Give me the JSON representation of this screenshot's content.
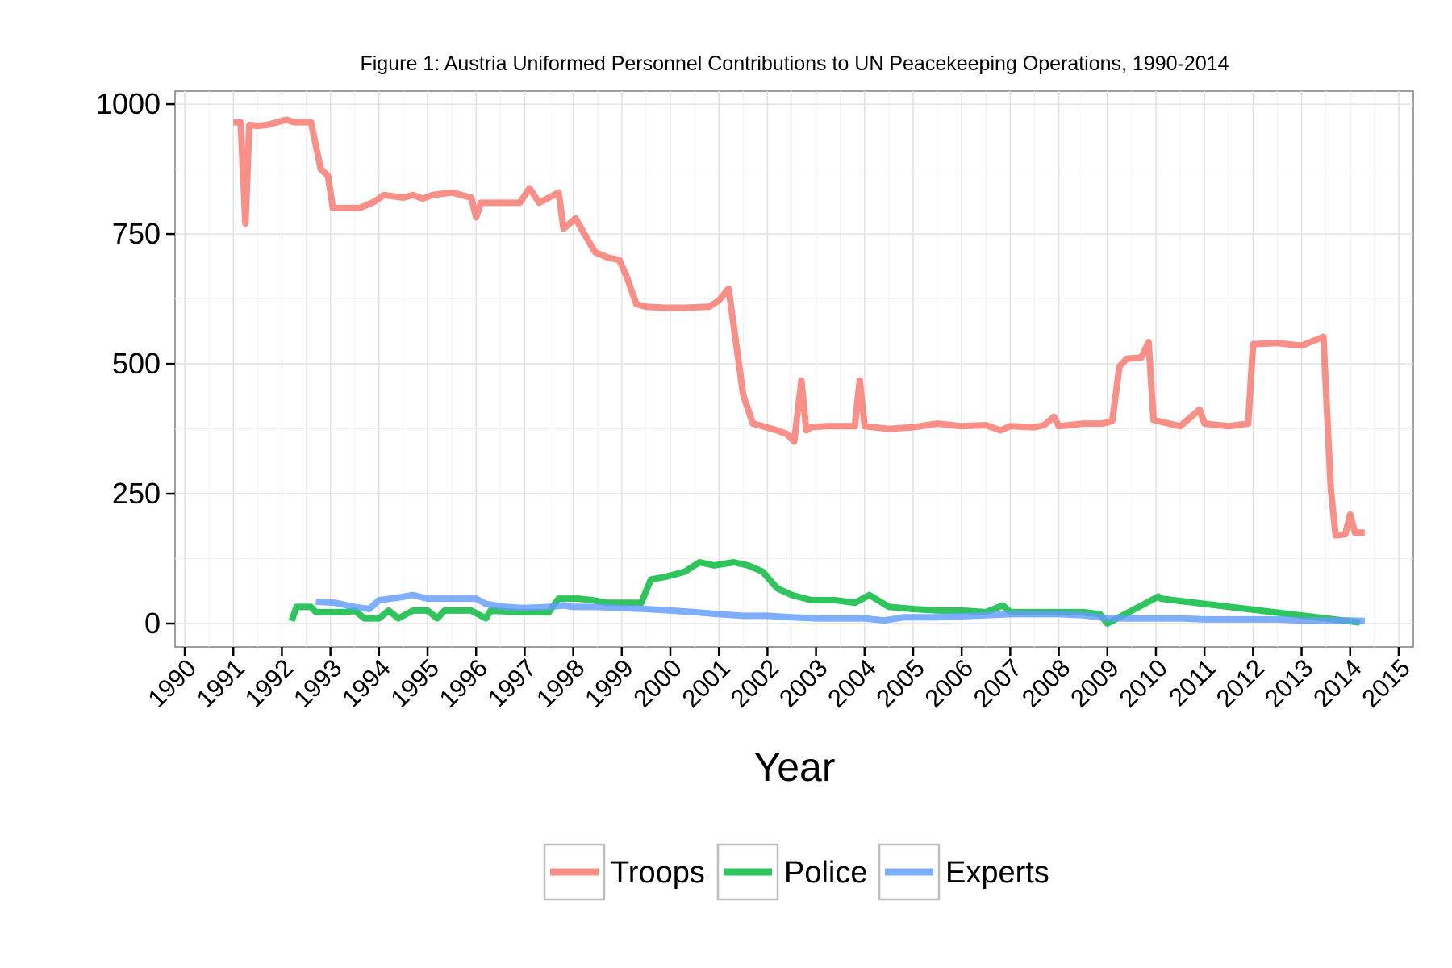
{
  "chart_data": {
    "type": "line",
    "title": "Figure 1: Austria Uniformed Personnel Contributions to UN Peacekeeping Operations, 1990-2014",
    "xlabel": "Year",
    "ylabel": "",
    "xlim": [
      1989.8,
      2015.3
    ],
    "ylim": [
      -45,
      1025
    ],
    "x_ticks": [
      "1990",
      "1991",
      "1992",
      "1993",
      "1994",
      "1995",
      "1996",
      "1997",
      "1998",
      "1999",
      "2000",
      "2001",
      "2002",
      "2003",
      "2004",
      "2005",
      "2006",
      "2007",
      "2008",
      "2009",
      "2010",
      "2011",
      "2012",
      "2013",
      "2014",
      "2015"
    ],
    "y_ticks": [
      "0",
      "250",
      "500",
      "750",
      "1000"
    ],
    "grid": true,
    "legend_position": "bottom",
    "colors": {
      "Troops": "#F8766D",
      "Police": "#00BA38",
      "Experts": "#619CFF"
    },
    "series": [
      {
        "name": "Troops",
        "points": [
          [
            1991.0,
            965
          ],
          [
            1991.15,
            965
          ],
          [
            1991.25,
            770
          ],
          [
            1991.33,
            960
          ],
          [
            1991.5,
            958
          ],
          [
            1991.7,
            960
          ],
          [
            1991.9,
            965
          ],
          [
            1992.1,
            970
          ],
          [
            1992.25,
            965
          ],
          [
            1992.6,
            965
          ],
          [
            1992.8,
            875
          ],
          [
            1992.95,
            862
          ],
          [
            1993.05,
            800
          ],
          [
            1993.3,
            800
          ],
          [
            1993.6,
            800
          ],
          [
            1993.9,
            812
          ],
          [
            1994.1,
            825
          ],
          [
            1994.5,
            820
          ],
          [
            1994.7,
            825
          ],
          [
            1994.9,
            818
          ],
          [
            1995.1,
            825
          ],
          [
            1995.5,
            830
          ],
          [
            1995.9,
            820
          ],
          [
            1996.0,
            782
          ],
          [
            1996.1,
            810
          ],
          [
            1996.5,
            810
          ],
          [
            1996.9,
            810
          ],
          [
            1997.1,
            838
          ],
          [
            1997.3,
            810
          ],
          [
            1997.5,
            820
          ],
          [
            1997.7,
            830
          ],
          [
            1997.8,
            760
          ],
          [
            1998.05,
            780
          ],
          [
            1998.2,
            755
          ],
          [
            1998.45,
            715
          ],
          [
            1998.7,
            705
          ],
          [
            1998.95,
            700
          ],
          [
            1999.1,
            668
          ],
          [
            1999.3,
            615
          ],
          [
            1999.5,
            610
          ],
          [
            1999.9,
            608
          ],
          [
            2000.3,
            608
          ],
          [
            2000.8,
            610
          ],
          [
            2001.0,
            622
          ],
          [
            2001.2,
            645
          ],
          [
            2001.5,
            440
          ],
          [
            2001.7,
            385
          ],
          [
            2001.9,
            380
          ],
          [
            2002.2,
            372
          ],
          [
            2002.4,
            365
          ],
          [
            2002.55,
            350
          ],
          [
            2002.7,
            468
          ],
          [
            2002.8,
            372
          ],
          [
            2002.9,
            378
          ],
          [
            2003.2,
            380
          ],
          [
            2003.5,
            380
          ],
          [
            2003.8,
            380
          ],
          [
            2003.9,
            468
          ],
          [
            2004.0,
            380
          ],
          [
            2004.5,
            375
          ],
          [
            2005.0,
            378
          ],
          [
            2005.5,
            385
          ],
          [
            2006.0,
            380
          ],
          [
            2006.5,
            382
          ],
          [
            2006.8,
            372
          ],
          [
            2007.0,
            380
          ],
          [
            2007.5,
            378
          ],
          [
            2007.7,
            382
          ],
          [
            2007.9,
            398
          ],
          [
            2008.0,
            380
          ],
          [
            2008.5,
            385
          ],
          [
            2008.9,
            385
          ],
          [
            2009.1,
            390
          ],
          [
            2009.25,
            495
          ],
          [
            2009.4,
            510
          ],
          [
            2009.7,
            512
          ],
          [
            2009.85,
            542
          ],
          [
            2009.95,
            392
          ],
          [
            2010.5,
            380
          ],
          [
            2010.9,
            412
          ],
          [
            2011.0,
            385
          ],
          [
            2011.5,
            380
          ],
          [
            2011.9,
            385
          ],
          [
            2012.0,
            538
          ],
          [
            2012.5,
            540
          ],
          [
            2013.0,
            535
          ],
          [
            2013.45,
            552
          ],
          [
            2013.6,
            260
          ],
          [
            2013.7,
            170
          ],
          [
            2013.9,
            172
          ],
          [
            2014.0,
            210
          ],
          [
            2014.1,
            175
          ],
          [
            2014.3,
            175
          ]
        ]
      },
      {
        "name": "Police",
        "points": [
          [
            1992.2,
            5
          ],
          [
            1992.3,
            32
          ],
          [
            1992.6,
            32
          ],
          [
            1992.7,
            22
          ],
          [
            1993.3,
            22
          ],
          [
            1993.5,
            25
          ],
          [
            1993.7,
            10
          ],
          [
            1994.0,
            10
          ],
          [
            1994.2,
            25
          ],
          [
            1994.4,
            10
          ],
          [
            1994.7,
            25
          ],
          [
            1995.0,
            25
          ],
          [
            1995.2,
            10
          ],
          [
            1995.35,
            25
          ],
          [
            1995.9,
            25
          ],
          [
            1996.2,
            10
          ],
          [
            1996.3,
            25
          ],
          [
            1996.9,
            22
          ],
          [
            1997.5,
            22
          ],
          [
            1997.7,
            48
          ],
          [
            1998.1,
            48
          ],
          [
            1998.4,
            45
          ],
          [
            1998.7,
            40
          ],
          [
            1999.4,
            40
          ],
          [
            1999.6,
            85
          ],
          [
            1999.9,
            90
          ],
          [
            2000.3,
            100
          ],
          [
            2000.6,
            118
          ],
          [
            2000.9,
            112
          ],
          [
            2001.3,
            118
          ],
          [
            2001.6,
            112
          ],
          [
            2001.9,
            100
          ],
          [
            2002.2,
            68
          ],
          [
            2002.5,
            55
          ],
          [
            2002.9,
            45
          ],
          [
            2003.4,
            45
          ],
          [
            2003.8,
            40
          ],
          [
            2004.1,
            55
          ],
          [
            2004.5,
            32
          ],
          [
            2005.0,
            28
          ],
          [
            2005.5,
            25
          ],
          [
            2006.0,
            25
          ],
          [
            2006.5,
            22
          ],
          [
            2006.85,
            35
          ],
          [
            2007.0,
            22
          ],
          [
            2007.5,
            22
          ],
          [
            2008.0,
            22
          ],
          [
            2008.5,
            22
          ],
          [
            2008.85,
            18
          ],
          [
            2009.0,
            0
          ],
          [
            2010.05,
            52
          ],
          [
            2010.1,
            48
          ],
          [
            2014.2,
            2
          ]
        ]
      },
      {
        "name": "Experts",
        "points": [
          [
            1992.7,
            42
          ],
          [
            1993.1,
            40
          ],
          [
            1993.5,
            32
          ],
          [
            1993.8,
            28
          ],
          [
            1994.0,
            45
          ],
          [
            1994.4,
            50
          ],
          [
            1994.7,
            55
          ],
          [
            1995.0,
            48
          ],
          [
            1995.5,
            48
          ],
          [
            1996.0,
            48
          ],
          [
            1996.2,
            38
          ],
          [
            1996.6,
            32
          ],
          [
            1997.0,
            30
          ],
          [
            1997.5,
            32
          ],
          [
            1997.8,
            35
          ],
          [
            1998.0,
            32
          ],
          [
            1998.5,
            32
          ],
          [
            1999.0,
            30
          ],
          [
            1999.5,
            28
          ],
          [
            2000.0,
            25
          ],
          [
            2000.5,
            22
          ],
          [
            2001.0,
            18
          ],
          [
            2001.5,
            15
          ],
          [
            2002.0,
            15
          ],
          [
            2002.5,
            12
          ],
          [
            2003.0,
            10
          ],
          [
            2003.5,
            10
          ],
          [
            2004.0,
            10
          ],
          [
            2004.4,
            6
          ],
          [
            2004.8,
            12
          ],
          [
            2005.5,
            12
          ],
          [
            2006.0,
            14
          ],
          [
            2006.5,
            16
          ],
          [
            2007.0,
            18
          ],
          [
            2007.5,
            18
          ],
          [
            2008.0,
            18
          ],
          [
            2008.5,
            16
          ],
          [
            2009.0,
            10
          ],
          [
            2009.5,
            10
          ],
          [
            2010.0,
            10
          ],
          [
            2010.5,
            10
          ],
          [
            2011.0,
            8
          ],
          [
            2011.5,
            8
          ],
          [
            2012.0,
            8
          ],
          [
            2012.5,
            8
          ],
          [
            2013.0,
            6
          ],
          [
            2013.5,
            6
          ],
          [
            2014.0,
            6
          ],
          [
            2014.3,
            5
          ]
        ]
      }
    ]
  }
}
